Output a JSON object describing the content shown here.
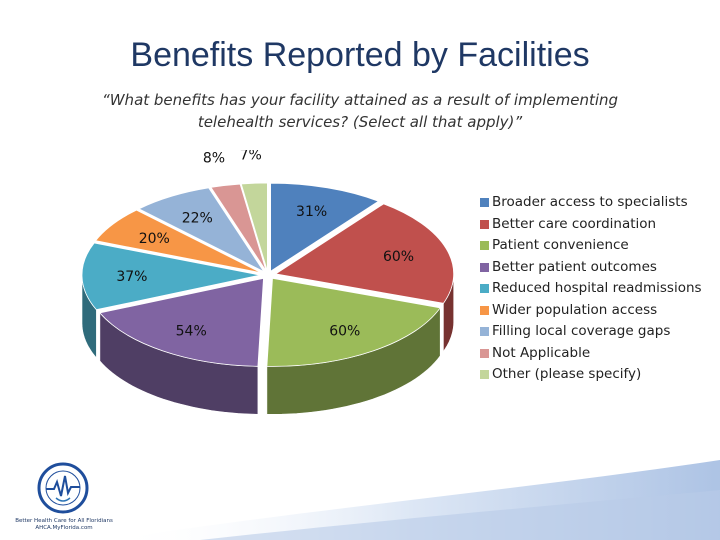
{
  "slide": {
    "title": "Benefits Reported by Facilities",
    "subtitle": "“What benefits has your facility attained as a result of implementing telehealth services?  (Select all that apply)”",
    "logo_caption_1": "Better Health Care for All Floridians",
    "logo_caption_2": "AHCA.MyFlorida.com"
  },
  "chart_data": {
    "type": "pie",
    "style": "3d-exploded",
    "legend_position": "right",
    "categories": [
      "Broader access to specialists",
      "Better care coordination",
      "Patient convenience",
      "Better patient outcomes",
      "Reduced hospital readmissions",
      "Wider population access",
      "Filling local coverage gaps",
      "Not Applicable",
      "Other (please specify)"
    ],
    "values": [
      31,
      60,
      60,
      54,
      37,
      20,
      22,
      8,
      7
    ],
    "labels": [
      "31%",
      "60%",
      "60%",
      "54%",
      "37%",
      "20%",
      "22%",
      "8%",
      "7%"
    ],
    "colors": [
      "#4f81bd",
      "#c0504d",
      "#9bbb59",
      "#8064a2",
      "#4bacc6",
      "#f79646",
      "#95b3d7",
      "#d99694",
      "#c3d69b"
    ]
  }
}
